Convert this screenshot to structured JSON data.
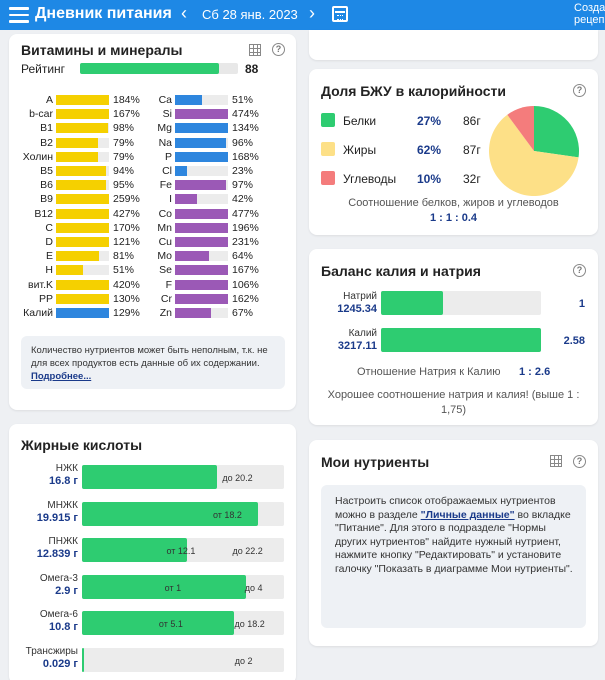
{
  "header": {
    "title": "Дневник питания",
    "date": "Сб 28 янв. 2023",
    "create_line1": "Созда",
    "create_line2": "рецеп"
  },
  "vitamins": {
    "title": "Витамины и минералы",
    "rating_label": "Рейтинг",
    "rating_value": "88",
    "rating_fraction": 0.88,
    "left": [
      {
        "label": "A",
        "pct": "184%",
        "fill": 1.0,
        "color": "#f5d000"
      },
      {
        "label": "b-car",
        "pct": "167%",
        "fill": 1.0,
        "color": "#f5d000"
      },
      {
        "label": "B1",
        "pct": "98%",
        "fill": 0.98,
        "color": "#f5d000"
      },
      {
        "label": "B2",
        "pct": "79%",
        "fill": 0.79,
        "color": "#f5d000"
      },
      {
        "label": "Холин",
        "pct": "79%",
        "fill": 0.79,
        "color": "#f5d000"
      },
      {
        "label": "B5",
        "pct": "94%",
        "fill": 0.94,
        "color": "#f5d000"
      },
      {
        "label": "B6",
        "pct": "95%",
        "fill": 0.95,
        "color": "#f5d000"
      },
      {
        "label": "B9",
        "pct": "259%",
        "fill": 1.0,
        "color": "#f5d000"
      },
      {
        "label": "B12",
        "pct": "427%",
        "fill": 1.0,
        "color": "#f5d000"
      },
      {
        "label": "C",
        "pct": "170%",
        "fill": 1.0,
        "color": "#f5d000"
      },
      {
        "label": "D",
        "pct": "121%",
        "fill": 1.0,
        "color": "#f5d000"
      },
      {
        "label": "E",
        "pct": "81%",
        "fill": 0.81,
        "color": "#f5d000"
      },
      {
        "label": "H",
        "pct": "51%",
        "fill": 0.51,
        "color": "#f5d000"
      },
      {
        "label": "вит.K",
        "pct": "420%",
        "fill": 1.0,
        "color": "#f5d000"
      },
      {
        "label": "PP",
        "pct": "130%",
        "fill": 1.0,
        "color": "#f5d000"
      },
      {
        "label": "Калий",
        "pct": "129%",
        "fill": 1.0,
        "color": "#2e86de"
      }
    ],
    "right": [
      {
        "label": "Ca",
        "pct": "51%",
        "fill": 0.51,
        "color": "#2e86de"
      },
      {
        "label": "Si",
        "pct": "474%",
        "fill": 1.0,
        "color": "#9b59b6"
      },
      {
        "label": "Mg",
        "pct": "134%",
        "fill": 1.0,
        "color": "#2e86de"
      },
      {
        "label": "Na",
        "pct": "96%",
        "fill": 0.96,
        "color": "#2e86de"
      },
      {
        "label": "P",
        "pct": "168%",
        "fill": 1.0,
        "color": "#2e86de"
      },
      {
        "label": "Cl",
        "pct": "23%",
        "fill": 0.23,
        "color": "#2e86de"
      },
      {
        "label": "Fe",
        "pct": "97%",
        "fill": 0.97,
        "color": "#9b59b6"
      },
      {
        "label": "I",
        "pct": "42%",
        "fill": 0.42,
        "color": "#9b59b6"
      },
      {
        "label": "Co",
        "pct": "477%",
        "fill": 1.0,
        "color": "#9b59b6"
      },
      {
        "label": "Mn",
        "pct": "196%",
        "fill": 1.0,
        "color": "#9b59b6"
      },
      {
        "label": "Cu",
        "pct": "231%",
        "fill": 1.0,
        "color": "#9b59b6"
      },
      {
        "label": "Mo",
        "pct": "64%",
        "fill": 0.64,
        "color": "#9b59b6"
      },
      {
        "label": "Se",
        "pct": "167%",
        "fill": 1.0,
        "color": "#9b59b6"
      },
      {
        "label": "F",
        "pct": "106%",
        "fill": 1.0,
        "color": "#9b59b6"
      },
      {
        "label": "Cr",
        "pct": "162%",
        "fill": 1.0,
        "color": "#9b59b6"
      },
      {
        "label": "Zn",
        "pct": "67%",
        "fill": 0.67,
        "color": "#9b59b6"
      }
    ],
    "note": "Количество нутриентов может быть неполным, т.к. не для всех продуктов есть данные об их содержании.",
    "note_link": "Подробнее..."
  },
  "fatty": {
    "title": "Жирные кислоты",
    "rows": [
      {
        "name": "НЖК",
        "value": "16.8 г",
        "fill": 0.67,
        "tags": [
          {
            "text": "до 20.2",
            "at": 0.77
          }
        ]
      },
      {
        "name": "МНЖК",
        "value": "19.915 г",
        "fill": 0.87,
        "tags": [
          {
            "text": "от 18.2",
            "at": 0.72
          }
        ]
      },
      {
        "name": "ПНЖК",
        "value": "12.839 г",
        "fill": 0.52,
        "tags": [
          {
            "text": "от 12.1",
            "at": 0.49
          },
          {
            "text": "до 22.2",
            "at": 0.82
          }
        ]
      },
      {
        "name": "Омега-3",
        "value": "2.9 г",
        "fill": 0.81,
        "tags": [
          {
            "text": "от 1",
            "at": 0.45
          },
          {
            "text": "до 4",
            "at": 0.85
          }
        ]
      },
      {
        "name": "Омега-6",
        "value": "10.8 г",
        "fill": 0.75,
        "tags": [
          {
            "text": "от 5.1",
            "at": 0.44
          },
          {
            "text": "до 18.2",
            "at": 0.83
          }
        ]
      },
      {
        "name": "Трансжиры",
        "value": "0.029 г",
        "fill": 0.01,
        "tags": [
          {
            "text": "до 2",
            "at": 0.8
          }
        ]
      }
    ]
  },
  "bju": {
    "title": "Доля БЖУ в калорийности",
    "rows": [
      {
        "name": "Белки",
        "pct": "27%",
        "grams": "86г",
        "color": "#2ecc71",
        "share": 0.27
      },
      {
        "name": "Жиры",
        "pct": "62%",
        "grams": "87г",
        "color": "#fde087",
        "share": 0.62
      },
      {
        "name": "Углеводы",
        "pct": "10%",
        "grams": "32г",
        "color": "#f47c7c",
        "share": 0.1
      }
    ],
    "ratio_label": "Соотношение белков, жиров и углеводов",
    "ratio_value": "1 : 1 : 0.4"
  },
  "balance": {
    "title": "Баланс калия и натрия",
    "rows": [
      {
        "name": "Натрий",
        "value": "1245.34",
        "ratio": "1",
        "fill": 0.39
      },
      {
        "name": "Калий",
        "value": "3217.11",
        "ratio": "2.58",
        "fill": 1.0
      }
    ],
    "ratio_label": "Отношение Натрия к Калию",
    "ratio_value": "1 : 2.6",
    "note": "Хорошее соотношение натрия и калия! (выше 1 : 1,75)"
  },
  "my": {
    "title": "Мои нутриенты",
    "text1": "Настроить список отображаемых нутриентов можно в разделе",
    "link": "\"Личные данные\"",
    "text2": "во вкладке \"Питание\". Для этого в подразделе \"Нормы других нутриентов\" найдите нужный нутриент, нажмите кнопку \"Редактировать\" и установите галочку \"Показать в диаграмме Мои нутриенты\"."
  }
}
